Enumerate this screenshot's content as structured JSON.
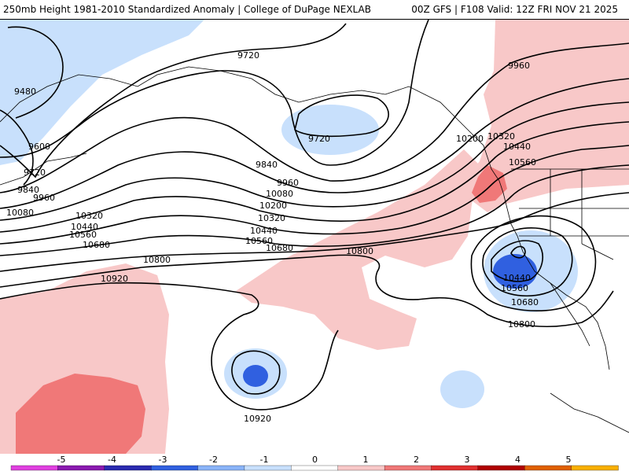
{
  "header": {
    "title": "250mb Height 1981-2010 Standardized Anomaly | College of DuPage NEXLAB",
    "run_info": "00Z GFS | F108 Valid: 12Z FRI NOV 21 2025"
  },
  "contour_labels": {
    "l9480": "9480",
    "l9600": "9600",
    "l9720a": "9720",
    "l9720b": "9720",
    "l9720c": "9720",
    "l9840a": "9840",
    "l9840b": "9840",
    "l9960a": "9960",
    "l9960b": "9960",
    "l9960c": "9960",
    "l10080a": "10080",
    "l10080b": "10080",
    "l10200a": "10200",
    "l10200b": "10200",
    "l10320a": "10320",
    "l10320b": "10320",
    "l10320c": "10320",
    "l10440a": "10440",
    "l10440b": "10440",
    "l10440c": "10440",
    "l10440d": "10440",
    "l10560a": "10560",
    "l10560b": "10560",
    "l10560c": "10560",
    "l10560d": "10560",
    "l10680a": "10680",
    "l10680b": "10680",
    "l10680c": "10680",
    "l10800a": "10800",
    "l10800b": "10800",
    "l10800c": "10800",
    "l10920a": "10920",
    "l10920b": "10920"
  },
  "colorbar": {
    "labels": [
      "-5",
      "-4",
      "-3",
      "-2",
      "-1",
      "0",
      "1",
      "2",
      "3",
      "4",
      "5"
    ],
    "colors": [
      "#e040e0",
      "#8a1ab0",
      "#2a2ab0",
      "#3060e0",
      "#8ab4f8",
      "#c8e0fc",
      "#ffffff",
      "#f8c8c8",
      "#f07878",
      "#e03030",
      "#b00000",
      "#e06000",
      "#f8b000"
    ]
  }
}
